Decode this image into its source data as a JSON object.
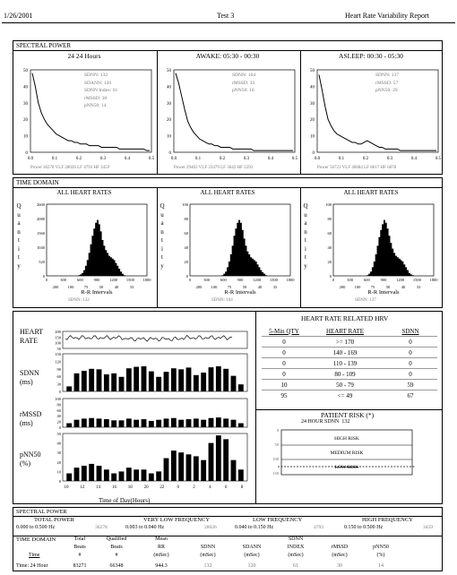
{
  "header": {
    "date": "1/26/2001",
    "test": "Test 3",
    "report": "Heart Rate Variability Report"
  },
  "spectral": {
    "section_title": "SPECTRAL POWER",
    "panels": [
      {
        "title": "24 24 Hours",
        "stats": [
          "SDNN: 132",
          "SDANN: 120",
          "SDNN Index: 61",
          "rMSSD: 30",
          "pNN50: 14"
        ],
        "footer": "Power 36278   VLF 28026   LF 4793   HF 3459"
      },
      {
        "title": "AWAKE: 05:30 - 00:30",
        "stats": [
          "SDNN: 164",
          "rMSSD: 33",
          "pNN50: 16"
        ],
        "footer": "Power 29403   VLF 23479   LF 3642   HF 2293"
      },
      {
        "title": "ASLEEP: 00:30 - 05:30",
        "stats": [
          "SDNN: 137",
          "rMSSD: 57",
          "pNN50: 29"
        ],
        "footer": "Power 56721   VLF 40684   LF 8617   HF 6878"
      }
    ],
    "yticks": [
      "50",
      "40",
      "30",
      "20",
      "10",
      "0"
    ],
    "xticks": [
      "0.0",
      "0.1",
      "0.2",
      "0.3",
      "0.4",
      "0.5"
    ]
  },
  "timedomain": {
    "section_title": "TIME DOMAIN",
    "panels": [
      {
        "title": "ALL HEART RATES",
        "yticks": [
          "2600",
          "2080",
          "1560",
          "1040",
          "520",
          "0"
        ],
        "footer": "SDNN: 132"
      },
      {
        "title": "ALL HEART RATES",
        "yticks": [
          "100",
          "80",
          "60",
          "40",
          "20",
          "0"
        ],
        "footer": "SDNN: 164"
      },
      {
        "title": "ALL HEART RATES",
        "yticks": [
          "100",
          "80",
          "60",
          "40",
          "20",
          "0"
        ],
        "footer": "SDNN: 137"
      }
    ],
    "ylabel": [
      "Q",
      "u",
      "a",
      "n",
      "t",
      "i",
      "t",
      "y"
    ],
    "xticks_top": [
      "0",
      "300",
      "600",
      "900",
      "1200",
      "1500",
      "1800"
    ],
    "xticks_bottom": [
      "200",
      "100",
      "75",
      "50",
      "40",
      "33"
    ],
    "xlabel": "R-R Intervals"
  },
  "trends": {
    "labels": {
      "hr": "HEART RATE",
      "sdnn": "SDNN (ms)",
      "rmssd": "rMSSD (ms)",
      "pnn50": "pNN50 (%)"
    },
    "hr_yticks": [
      "200",
      "150",
      "100",
      "50"
    ],
    "sdnn_yticks": [
      "150",
      "120",
      "90",
      "60",
      "30",
      "0"
    ],
    "rmssd_yticks": [
      "100",
      "80",
      "60",
      "40",
      "20",
      "0"
    ],
    "pnn_yticks": [
      "50",
      "40",
      "30",
      "20",
      "10",
      "0"
    ],
    "xticks": [
      "10",
      "12",
      "14",
      "16",
      "18",
      "20",
      "22",
      "0",
      "2",
      "4",
      "6",
      "8"
    ],
    "xlabel": "Time of Day(Hours)",
    "sdnn_values": [
      20,
      72,
      82,
      90,
      88,
      68,
      72,
      58,
      92,
      98,
      100,
      80,
      58,
      78,
      92,
      88,
      95,
      65,
      75,
      96,
      100,
      90,
      62,
      28
    ],
    "rmssd_values": [
      14,
      26,
      30,
      32,
      30,
      28,
      24,
      24,
      30,
      26,
      28,
      22,
      26,
      30,
      32,
      26,
      28,
      30,
      26,
      32,
      34,
      30,
      26,
      14
    ],
    "pnn_values": [
      8,
      14,
      16,
      18,
      16,
      12,
      8,
      10,
      14,
      12,
      12,
      8,
      10,
      24,
      32,
      30,
      28,
      26,
      22,
      40,
      48,
      44,
      22,
      12
    ]
  },
  "hrv_table": {
    "title": "HEART RATE RELATED HRV",
    "headers": [
      "5-Min QTY",
      "HEART RATE",
      "SDNN"
    ],
    "rows": [
      [
        "0",
        ">= 170",
        "0"
      ],
      [
        "0",
        "140 - 169",
        "0"
      ],
      [
        "0",
        "110 - 139",
        "0"
      ],
      [
        "0",
        "80 - 109",
        "0"
      ],
      [
        "10",
        "50 - 79",
        "59"
      ],
      [
        "95",
        "<= 49",
        "67"
      ]
    ]
  },
  "risk": {
    "title": "PATIENT RISK (*)",
    "subtitle": "24 HOUR SDNN",
    "value": "132",
    "levels": [
      "HIGH RISK",
      "MEDIUM RISK",
      "LOW RISK"
    ],
    "yticks": [
      "0",
      "50",
      "100",
      "150"
    ]
  },
  "bottom": {
    "section_title": "SPECTRAL POWER",
    "bands": [
      {
        "name": "TOTAL POWER",
        "range": "0.000 to 0.500 Hz",
        "value": "36278"
      },
      {
        "name": "VERY LOW FREQUENCY",
        "range": "0.003 to 0.040 Hz",
        "value": "28026"
      },
      {
        "name": "LOW FREQUENCY",
        "range": "0.040 to 0.150 Hz",
        "value": "4793"
      },
      {
        "name": "HIGH FREQUENCY",
        "range": "0.150 to 0.500 Hz",
        "value": "3459"
      }
    ],
    "td_title": "TIME DOMAIN",
    "col_top": [
      "Total",
      "Qualified",
      "Mean",
      "",
      "",
      "SDNN",
      "",
      ""
    ],
    "col_mid": [
      "Beats",
      "Beats",
      "RR",
      "SDNN",
      "SDANN",
      "INDEX",
      "rMSSD",
      "pNN50"
    ],
    "col_bot": [
      "#",
      "#",
      "(mSec)",
      "(mSec)",
      "(mSec)",
      "(mSec)",
      "(mSec)",
      "(%)"
    ],
    "row_label": "Time: 24 Hour",
    "row_values": [
      "83271",
      "66348",
      "944.3",
      "132",
      "120",
      "61",
      "30",
      "14"
    ],
    "time_label": "Time"
  }
}
